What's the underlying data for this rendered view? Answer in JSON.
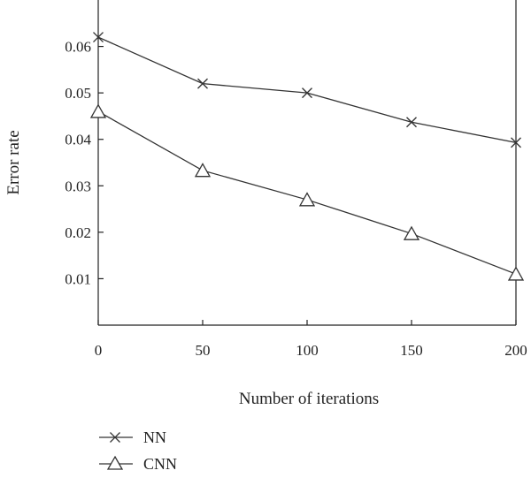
{
  "chart_data": {
    "type": "line",
    "xlabel": "Number of iterations",
    "ylabel": "Error rate",
    "x": [
      0,
      50,
      100,
      150,
      200
    ],
    "xlim": [
      0,
      200
    ],
    "ylim": [
      0.0,
      0.07
    ],
    "x_ticks": [
      "0",
      "50",
      "100",
      "150",
      "200"
    ],
    "y_ticks": [
      "0.01",
      "0.02",
      "0.03",
      "0.04",
      "0.05",
      "0.06"
    ],
    "grid": false,
    "legend_position": "bottom-left",
    "series": [
      {
        "name": "NN",
        "marker": "x",
        "values": [
          0.062,
          0.052,
          0.05,
          0.0437,
          0.0393
        ]
      },
      {
        "name": "CNN",
        "marker": "triangle",
        "values": [
          0.046,
          0.0333,
          0.027,
          0.0197,
          0.011
        ]
      }
    ],
    "line_color": "#333333"
  }
}
